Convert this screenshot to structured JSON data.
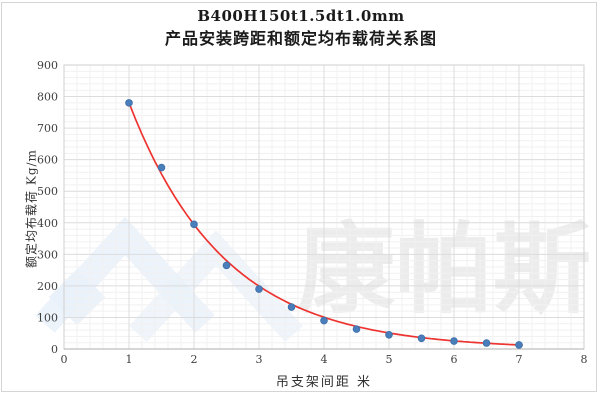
{
  "chart_data": {
    "type": "scatter",
    "title_line1": "B400H150t1.5dt1.0mm",
    "title_line2": "产品安装跨距和额定均布载荷关系图",
    "xlabel": "吊支架间距  米",
    "ylabel": "额定均布载荷 Kg/m",
    "x": [
      1,
      1.5,
      2,
      2.5,
      3,
      3.5,
      4,
      4.5,
      5,
      5.5,
      6,
      6.5,
      7
    ],
    "y": [
      780,
      575,
      395,
      265,
      190,
      133,
      90,
      63,
      45,
      34,
      25,
      19,
      13
    ],
    "xlim": [
      0,
      8
    ],
    "ylim": [
      0,
      900
    ],
    "x_ticks": [
      0,
      1,
      2,
      3,
      4,
      5,
      6,
      7,
      8
    ],
    "y_ticks": [
      0,
      100,
      200,
      300,
      400,
      500,
      600,
      700,
      800,
      900
    ],
    "x_minor_step": 0.2,
    "y_minor_step": 20,
    "trendline": "exponential",
    "grid": "on",
    "legend": "none",
    "colors": {
      "point": "#4a7ebb",
      "point_edge": "#3e6fa8",
      "trendline": "#ee3430",
      "grid_minor": "#f1f1f1",
      "grid_major": "#dcdcdc",
      "plot_border": "#cfcfcf",
      "axis_line": "#aeaeae",
      "frame_border": "#d5d5d5",
      "watermark_blue": "#e9f1fa",
      "watermark_gray": "#ebebeb"
    }
  },
  "watermark": {
    "text": "康帕斯"
  }
}
